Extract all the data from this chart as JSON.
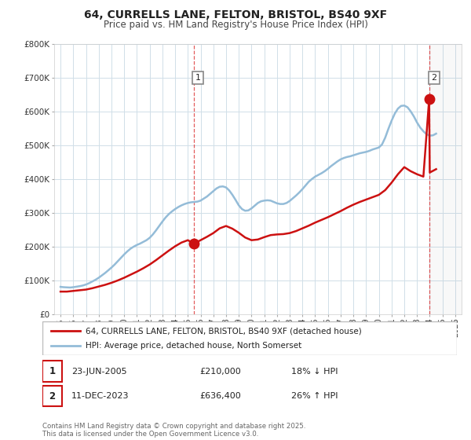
{
  "title": "64, CURRELLS LANE, FELTON, BRISTOL, BS40 9XF",
  "subtitle": "Price paid vs. HM Land Registry's House Price Index (HPI)",
  "title_fontsize": 10,
  "subtitle_fontsize": 8.5,
  "background_color": "#ffffff",
  "grid_color": "#d0dfe8",
  "hpi_color": "#94bcd8",
  "price_color": "#cc1111",
  "marker_color": "#cc1111",
  "ylim": [
    0,
    800000
  ],
  "yticks": [
    0,
    100000,
    200000,
    300000,
    400000,
    500000,
    600000,
    700000,
    800000
  ],
  "ytick_labels": [
    "£0",
    "£100K",
    "£200K",
    "£300K",
    "£400K",
    "£500K",
    "£600K",
    "£700K",
    "£800K"
  ],
  "xlim_start": 1994.5,
  "xlim_end": 2026.5,
  "xticks": [
    1995,
    1996,
    1997,
    1998,
    1999,
    2000,
    2001,
    2002,
    2003,
    2004,
    2005,
    2006,
    2007,
    2008,
    2009,
    2010,
    2011,
    2012,
    2013,
    2014,
    2015,
    2016,
    2017,
    2018,
    2019,
    2020,
    2021,
    2022,
    2023,
    2024,
    2025,
    2026
  ],
  "sale1_x": 2005.48,
  "sale1_y": 210000,
  "sale2_x": 2023.95,
  "sale2_y": 636400,
  "vline1_x": 2005.48,
  "vline2_x": 2023.95,
  "legend_line1": "64, CURRELLS LANE, FELTON, BRISTOL, BS40 9XF (detached house)",
  "legend_line2": "HPI: Average price, detached house, North Somerset",
  "annotation1_date": "23-JUN-2005",
  "annotation1_price": "£210,000",
  "annotation1_hpi": "18% ↓ HPI",
  "annotation2_date": "11-DEC-2023",
  "annotation2_price": "£636,400",
  "annotation2_hpi": "26% ↑ HPI",
  "footer": "Contains HM Land Registry data © Crown copyright and database right 2025.\nThis data is licensed under the Open Government Licence v3.0.",
  "hpi_data_x": [
    1995.0,
    1995.25,
    1995.5,
    1995.75,
    1996.0,
    1996.25,
    1996.5,
    1996.75,
    1997.0,
    1997.25,
    1997.5,
    1997.75,
    1998.0,
    1998.25,
    1998.5,
    1998.75,
    1999.0,
    1999.25,
    1999.5,
    1999.75,
    2000.0,
    2000.25,
    2000.5,
    2000.75,
    2001.0,
    2001.25,
    2001.5,
    2001.75,
    2002.0,
    2002.25,
    2002.5,
    2002.75,
    2003.0,
    2003.25,
    2003.5,
    2003.75,
    2004.0,
    2004.25,
    2004.5,
    2004.75,
    2005.0,
    2005.25,
    2005.5,
    2005.75,
    2006.0,
    2006.25,
    2006.5,
    2006.75,
    2007.0,
    2007.25,
    2007.5,
    2007.75,
    2008.0,
    2008.25,
    2008.5,
    2008.75,
    2009.0,
    2009.25,
    2009.5,
    2009.75,
    2010.0,
    2010.25,
    2010.5,
    2010.75,
    2011.0,
    2011.25,
    2011.5,
    2011.75,
    2012.0,
    2012.25,
    2012.5,
    2012.75,
    2013.0,
    2013.25,
    2013.5,
    2013.75,
    2014.0,
    2014.25,
    2014.5,
    2014.75,
    2015.0,
    2015.25,
    2015.5,
    2015.75,
    2016.0,
    2016.25,
    2016.5,
    2016.75,
    2017.0,
    2017.25,
    2017.5,
    2017.75,
    2018.0,
    2018.25,
    2018.5,
    2018.75,
    2019.0,
    2019.25,
    2019.5,
    2019.75,
    2020.0,
    2020.25,
    2020.5,
    2020.75,
    2021.0,
    2021.25,
    2021.5,
    2021.75,
    2022.0,
    2022.25,
    2022.5,
    2022.75,
    2023.0,
    2023.25,
    2023.5,
    2023.75,
    2024.0,
    2024.25,
    2024.5
  ],
  "hpi_data_y": [
    82000,
    81000,
    80500,
    80000,
    81000,
    82500,
    84000,
    86000,
    89000,
    93000,
    98000,
    103000,
    109000,
    116000,
    123000,
    131000,
    139000,
    148000,
    158000,
    168000,
    178000,
    187000,
    195000,
    201000,
    206000,
    210000,
    215000,
    220000,
    227000,
    237000,
    249000,
    262000,
    275000,
    287000,
    297000,
    305000,
    312000,
    318000,
    323000,
    327000,
    330000,
    332000,
    333000,
    334000,
    337000,
    343000,
    349000,
    357000,
    365000,
    373000,
    378000,
    379000,
    376000,
    367000,
    354000,
    339000,
    323000,
    312000,
    307000,
    308000,
    314000,
    322000,
    330000,
    335000,
    337000,
    338000,
    337000,
    333000,
    329000,
    327000,
    327000,
    330000,
    336000,
    344000,
    352000,
    361000,
    371000,
    382000,
    393000,
    401000,
    408000,
    413000,
    418000,
    424000,
    431000,
    439000,
    446000,
    453000,
    459000,
    463000,
    466000,
    468000,
    471000,
    474000,
    477000,
    479000,
    481000,
    484000,
    488000,
    491000,
    494000,
    503000,
    523000,
    549000,
    573000,
    594000,
    609000,
    617000,
    618000,
    613000,
    601000,
    586000,
    568000,
    553000,
    542000,
    533000,
    529000,
    530000,
    535000
  ],
  "price_data_x": [
    1995.0,
    1995.5,
    1996.0,
    1996.5,
    1997.0,
    1997.5,
    1998.0,
    1998.5,
    1999.0,
    1999.5,
    2000.0,
    2000.5,
    2001.0,
    2001.5,
    2002.0,
    2002.5,
    2003.0,
    2003.5,
    2004.0,
    2004.5,
    2005.0,
    2005.48,
    2005.75,
    2006.0,
    2006.5,
    2007.0,
    2007.5,
    2008.0,
    2008.5,
    2009.0,
    2009.5,
    2010.0,
    2010.5,
    2011.0,
    2011.5,
    2012.0,
    2012.5,
    2013.0,
    2013.5,
    2014.0,
    2014.5,
    2015.0,
    2015.5,
    2016.0,
    2016.5,
    2017.0,
    2017.5,
    2018.0,
    2018.5,
    2019.0,
    2019.5,
    2020.0,
    2020.5,
    2021.0,
    2021.5,
    2022.0,
    2022.5,
    2023.0,
    2023.5,
    2023.95,
    2024.0,
    2024.5
  ],
  "price_data_y": [
    68000,
    68000,
    70000,
    72000,
    74000,
    78000,
    83000,
    88000,
    94000,
    101000,
    109000,
    118000,
    127000,
    137000,
    148000,
    161000,
    175000,
    189000,
    202000,
    213000,
    220000,
    210000,
    215000,
    220000,
    230000,
    241000,
    255000,
    262000,
    254000,
    242000,
    228000,
    220000,
    222000,
    229000,
    235000,
    237000,
    238000,
    241000,
    247000,
    255000,
    263000,
    272000,
    280000,
    288000,
    297000,
    306000,
    316000,
    325000,
    333000,
    340000,
    347000,
    354000,
    368000,
    390000,
    415000,
    436000,
    424000,
    415000,
    408000,
    636400,
    420000,
    430000
  ]
}
